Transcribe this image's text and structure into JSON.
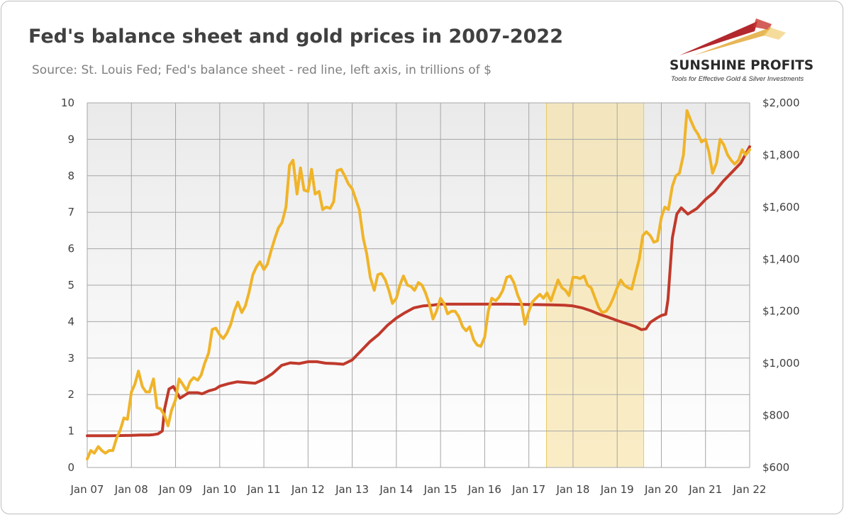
{
  "header": {
    "title": "Fed's balance sheet and gold prices in 2007-2022",
    "subtitle": "Source: St. Louis Fed; Fed's balance sheet - red line, left axis, in trillions of $"
  },
  "logo": {
    "name": "SUNSHINE PROFITS",
    "tagline": "Tools for Effective Gold & Silver Investments"
  },
  "colors": {
    "fed_line": "#c0392b",
    "gold_line": "#f0b429",
    "highlight": "#f7e4a8",
    "grid": "#a6a6a6"
  },
  "chart_data": {
    "type": "line",
    "x_ticks": [
      "Jan 07",
      "Jan 08",
      "Jan 09",
      "Jan 10",
      "Jan 11",
      "Jan 12",
      "Jan 13",
      "Jan 14",
      "Jan 15",
      "Jan 16",
      "Jan 17",
      "Jan 18",
      "Jan 19",
      "Jan 20",
      "Jan 21",
      "Jan 22"
    ],
    "x_range": [
      2007.0,
      2022.0
    ],
    "y_left": {
      "range": [
        0,
        10
      ],
      "ticks": [
        "0",
        "1",
        "2",
        "3",
        "4",
        "5",
        "6",
        "7",
        "8",
        "9",
        "10"
      ]
    },
    "y_right": {
      "range": [
        600,
        2000
      ],
      "ticks": [
        "$600",
        "$800",
        "$1,000",
        "$1,200",
        "$1,400",
        "$1,600",
        "$1,800",
        "$2,000"
      ]
    },
    "grid": true,
    "highlight_period": [
      2017.4,
      2019.6
    ],
    "series": [
      {
        "axis": "left",
        "color": "#c0392b",
        "points": [
          [
            2007.0,
            0.87
          ],
          [
            2007.5,
            0.87
          ],
          [
            2008.0,
            0.88
          ],
          [
            2008.2,
            0.89
          ],
          [
            2008.4,
            0.89
          ],
          [
            2008.5,
            0.9
          ],
          [
            2008.6,
            0.92
          ],
          [
            2008.7,
            1.0
          ],
          [
            2008.75,
            1.6
          ],
          [
            2008.85,
            2.15
          ],
          [
            2008.95,
            2.22
          ],
          [
            2009.1,
            1.9
          ],
          [
            2009.3,
            2.05
          ],
          [
            2009.5,
            2.05
          ],
          [
            2009.6,
            2.02
          ],
          [
            2009.75,
            2.1
          ],
          [
            2009.9,
            2.15
          ],
          [
            2010.0,
            2.23
          ],
          [
            2010.2,
            2.3
          ],
          [
            2010.4,
            2.35
          ],
          [
            2010.6,
            2.33
          ],
          [
            2010.8,
            2.31
          ],
          [
            2011.0,
            2.42
          ],
          [
            2011.2,
            2.58
          ],
          [
            2011.4,
            2.8
          ],
          [
            2011.6,
            2.87
          ],
          [
            2011.8,
            2.85
          ],
          [
            2012.0,
            2.9
          ],
          [
            2012.2,
            2.9
          ],
          [
            2012.4,
            2.86
          ],
          [
            2012.6,
            2.85
          ],
          [
            2012.8,
            2.83
          ],
          [
            2013.0,
            2.95
          ],
          [
            2013.2,
            3.2
          ],
          [
            2013.4,
            3.45
          ],
          [
            2013.6,
            3.65
          ],
          [
            2013.8,
            3.9
          ],
          [
            2014.0,
            4.1
          ],
          [
            2014.2,
            4.25
          ],
          [
            2014.4,
            4.38
          ],
          [
            2014.6,
            4.43
          ],
          [
            2014.8,
            4.45
          ],
          [
            2015.0,
            4.48
          ],
          [
            2015.5,
            4.48
          ],
          [
            2016.0,
            4.48
          ],
          [
            2016.5,
            4.48
          ],
          [
            2017.0,
            4.47
          ],
          [
            2017.5,
            4.46
          ],
          [
            2017.8,
            4.45
          ],
          [
            2018.0,
            4.43
          ],
          [
            2018.2,
            4.38
          ],
          [
            2018.4,
            4.3
          ],
          [
            2018.6,
            4.2
          ],
          [
            2018.8,
            4.12
          ],
          [
            2019.0,
            4.03
          ],
          [
            2019.2,
            3.95
          ],
          [
            2019.4,
            3.87
          ],
          [
            2019.55,
            3.78
          ],
          [
            2019.65,
            3.8
          ],
          [
            2019.75,
            3.98
          ],
          [
            2019.9,
            4.1
          ],
          [
            2020.0,
            4.17
          ],
          [
            2020.1,
            4.2
          ],
          [
            2020.15,
            4.6
          ],
          [
            2020.25,
            6.3
          ],
          [
            2020.35,
            6.95
          ],
          [
            2020.45,
            7.12
          ],
          [
            2020.6,
            6.95
          ],
          [
            2020.8,
            7.1
          ],
          [
            2021.0,
            7.35
          ],
          [
            2021.2,
            7.55
          ],
          [
            2021.4,
            7.85
          ],
          [
            2021.6,
            8.1
          ],
          [
            2021.8,
            8.35
          ],
          [
            2022.0,
            8.8
          ]
        ]
      },
      {
        "axis": "right",
        "color": "#f0b429",
        "points": [
          [
            2007.0,
            633
          ],
          [
            2007.08,
            665
          ],
          [
            2007.16,
            655
          ],
          [
            2007.25,
            680
          ],
          [
            2007.33,
            665
          ],
          [
            2007.41,
            655
          ],
          [
            2007.5,
            665
          ],
          [
            2007.58,
            665
          ],
          [
            2007.66,
            710
          ],
          [
            2007.75,
            745
          ],
          [
            2007.83,
            790
          ],
          [
            2007.91,
            785
          ],
          [
            2008.0,
            890
          ],
          [
            2008.08,
            920
          ],
          [
            2008.16,
            970
          ],
          [
            2008.25,
            910
          ],
          [
            2008.33,
            890
          ],
          [
            2008.41,
            890
          ],
          [
            2008.5,
            940
          ],
          [
            2008.58,
            830
          ],
          [
            2008.66,
            825
          ],
          [
            2008.75,
            800
          ],
          [
            2008.83,
            760
          ],
          [
            2008.91,
            820
          ],
          [
            2009.0,
            860
          ],
          [
            2009.08,
            940
          ],
          [
            2009.16,
            920
          ],
          [
            2009.25,
            895
          ],
          [
            2009.33,
            930
          ],
          [
            2009.41,
            945
          ],
          [
            2009.5,
            935
          ],
          [
            2009.58,
            955
          ],
          [
            2009.66,
            1000
          ],
          [
            2009.75,
            1040
          ],
          [
            2009.83,
            1130
          ],
          [
            2009.91,
            1135
          ],
          [
            2010.0,
            1110
          ],
          [
            2010.08,
            1095
          ],
          [
            2010.16,
            1115
          ],
          [
            2010.25,
            1150
          ],
          [
            2010.33,
            1200
          ],
          [
            2010.41,
            1235
          ],
          [
            2010.5,
            1195
          ],
          [
            2010.58,
            1220
          ],
          [
            2010.66,
            1270
          ],
          [
            2010.75,
            1340
          ],
          [
            2010.83,
            1370
          ],
          [
            2010.91,
            1390
          ],
          [
            2011.0,
            1360
          ],
          [
            2011.08,
            1380
          ],
          [
            2011.16,
            1430
          ],
          [
            2011.25,
            1480
          ],
          [
            2011.33,
            1520
          ],
          [
            2011.41,
            1540
          ],
          [
            2011.5,
            1600
          ],
          [
            2011.58,
            1760
          ],
          [
            2011.66,
            1780
          ],
          [
            2011.75,
            1650
          ],
          [
            2011.83,
            1750
          ],
          [
            2011.91,
            1665
          ],
          [
            2012.0,
            1660
          ],
          [
            2012.08,
            1745
          ],
          [
            2012.16,
            1650
          ],
          [
            2012.25,
            1660
          ],
          [
            2012.33,
            1590
          ],
          [
            2012.41,
            1600
          ],
          [
            2012.5,
            1595
          ],
          [
            2012.58,
            1620
          ],
          [
            2012.66,
            1740
          ],
          [
            2012.75,
            1745
          ],
          [
            2012.83,
            1720
          ],
          [
            2012.91,
            1690
          ],
          [
            2013.0,
            1670
          ],
          [
            2013.08,
            1630
          ],
          [
            2013.16,
            1590
          ],
          [
            2013.25,
            1480
          ],
          [
            2013.33,
            1420
          ],
          [
            2013.41,
            1330
          ],
          [
            2013.5,
            1280
          ],
          [
            2013.58,
            1340
          ],
          [
            2013.66,
            1345
          ],
          [
            2013.75,
            1320
          ],
          [
            2013.83,
            1280
          ],
          [
            2013.91,
            1230
          ],
          [
            2014.0,
            1250
          ],
          [
            2014.08,
            1300
          ],
          [
            2014.16,
            1335
          ],
          [
            2014.25,
            1300
          ],
          [
            2014.33,
            1295
          ],
          [
            2014.41,
            1280
          ],
          [
            2014.5,
            1310
          ],
          [
            2014.58,
            1300
          ],
          [
            2014.66,
            1270
          ],
          [
            2014.75,
            1225
          ],
          [
            2014.83,
            1170
          ],
          [
            2014.91,
            1200
          ],
          [
            2015.0,
            1250
          ],
          [
            2015.08,
            1230
          ],
          [
            2015.16,
            1190
          ],
          [
            2015.25,
            1200
          ],
          [
            2015.33,
            1200
          ],
          [
            2015.41,
            1180
          ],
          [
            2015.5,
            1140
          ],
          [
            2015.58,
            1125
          ],
          [
            2015.66,
            1140
          ],
          [
            2015.75,
            1090
          ],
          [
            2015.83,
            1070
          ],
          [
            2015.91,
            1065
          ],
          [
            2016.0,
            1100
          ],
          [
            2016.08,
            1200
          ],
          [
            2016.16,
            1250
          ],
          [
            2016.25,
            1240
          ],
          [
            2016.33,
            1255
          ],
          [
            2016.41,
            1280
          ],
          [
            2016.5,
            1330
          ],
          [
            2016.58,
            1335
          ],
          [
            2016.66,
            1310
          ],
          [
            2016.75,
            1260
          ],
          [
            2016.83,
            1230
          ],
          [
            2016.91,
            1150
          ],
          [
            2017.0,
            1200
          ],
          [
            2017.08,
            1235
          ],
          [
            2017.16,
            1250
          ],
          [
            2017.25,
            1265
          ],
          [
            2017.33,
            1250
          ],
          [
            2017.41,
            1270
          ],
          [
            2017.5,
            1240
          ],
          [
            2017.58,
            1280
          ],
          [
            2017.66,
            1320
          ],
          [
            2017.75,
            1290
          ],
          [
            2017.83,
            1280
          ],
          [
            2017.91,
            1260
          ],
          [
            2018.0,
            1330
          ],
          [
            2018.08,
            1330
          ],
          [
            2018.16,
            1325
          ],
          [
            2018.25,
            1335
          ],
          [
            2018.33,
            1300
          ],
          [
            2018.41,
            1290
          ],
          [
            2018.5,
            1250
          ],
          [
            2018.58,
            1215
          ],
          [
            2018.66,
            1195
          ],
          [
            2018.75,
            1200
          ],
          [
            2018.83,
            1220
          ],
          [
            2018.91,
            1250
          ],
          [
            2019.0,
            1290
          ],
          [
            2019.08,
            1320
          ],
          [
            2019.16,
            1300
          ],
          [
            2019.25,
            1290
          ],
          [
            2019.33,
            1285
          ],
          [
            2019.41,
            1340
          ],
          [
            2019.5,
            1400
          ],
          [
            2019.58,
            1490
          ],
          [
            2019.66,
            1505
          ],
          [
            2019.75,
            1490
          ],
          [
            2019.83,
            1465
          ],
          [
            2019.91,
            1470
          ],
          [
            2020.0,
            1560
          ],
          [
            2020.08,
            1600
          ],
          [
            2020.16,
            1590
          ],
          [
            2020.25,
            1680
          ],
          [
            2020.33,
            1720
          ],
          [
            2020.41,
            1730
          ],
          [
            2020.5,
            1800
          ],
          [
            2020.58,
            1970
          ],
          [
            2020.66,
            1935
          ],
          [
            2020.75,
            1900
          ],
          [
            2020.83,
            1880
          ],
          [
            2020.91,
            1850
          ],
          [
            2021.0,
            1860
          ],
          [
            2021.08,
            1810
          ],
          [
            2021.16,
            1730
          ],
          [
            2021.25,
            1770
          ],
          [
            2021.33,
            1860
          ],
          [
            2021.41,
            1840
          ],
          [
            2021.5,
            1800
          ],
          [
            2021.58,
            1780
          ],
          [
            2021.66,
            1765
          ],
          [
            2021.75,
            1780
          ],
          [
            2021.83,
            1820
          ],
          [
            2021.91,
            1800
          ],
          [
            2022.0,
            1820
          ]
        ]
      }
    ]
  }
}
